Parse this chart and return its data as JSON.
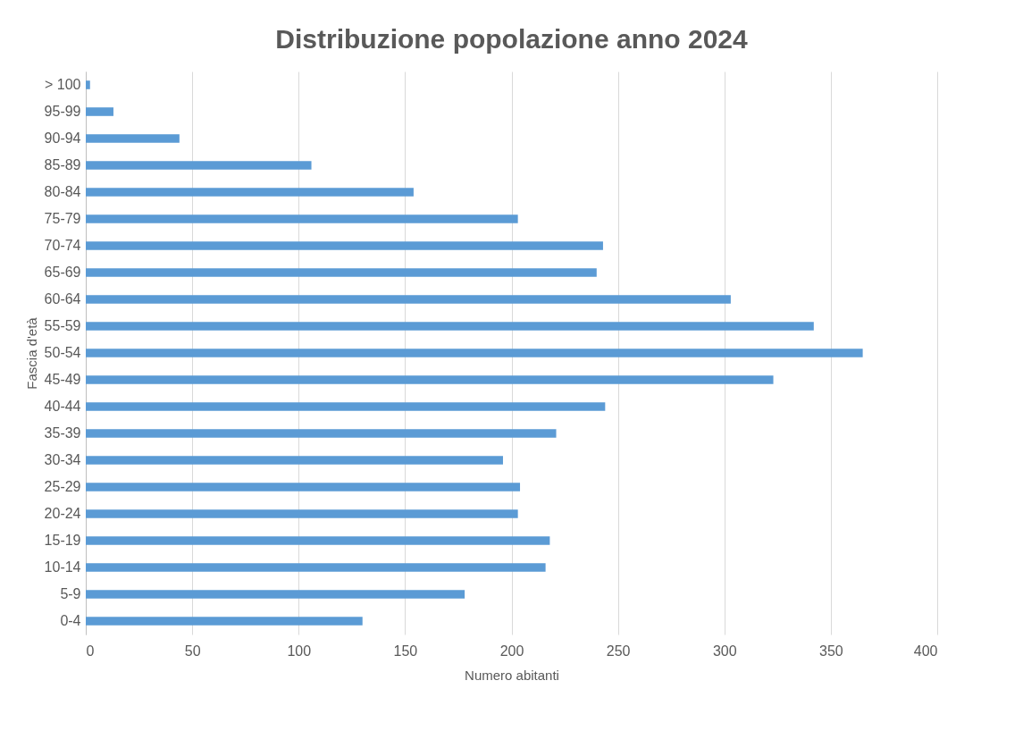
{
  "chart_data": {
    "type": "bar",
    "orientation": "horizontal",
    "title": "Distribuzione popolazione anno 2024",
    "xlabel": "Numero abitanti",
    "ylabel": "Fascia d'età",
    "categories": [
      "> 100",
      "95-99",
      "90-94",
      "85-89",
      "80-84",
      "75-79",
      "70-74",
      "65-69",
      "60-64",
      "55-59",
      "50-54",
      "45-49",
      "40-44",
      "35-39",
      "30-34",
      "25-29",
      "20-24",
      "15-19",
      "10-14",
      "5-9",
      "0-4"
    ],
    "values": [
      2,
      13,
      44,
      106,
      154,
      203,
      243,
      240,
      303,
      342,
      365,
      323,
      244,
      221,
      196,
      204,
      203,
      218,
      216,
      178,
      130
    ],
    "color": "#5b9bd5",
    "xlim": [
      0,
      400
    ],
    "xticks": [
      0,
      50,
      100,
      150,
      200,
      250,
      300,
      350,
      400
    ],
    "grid": "x"
  }
}
